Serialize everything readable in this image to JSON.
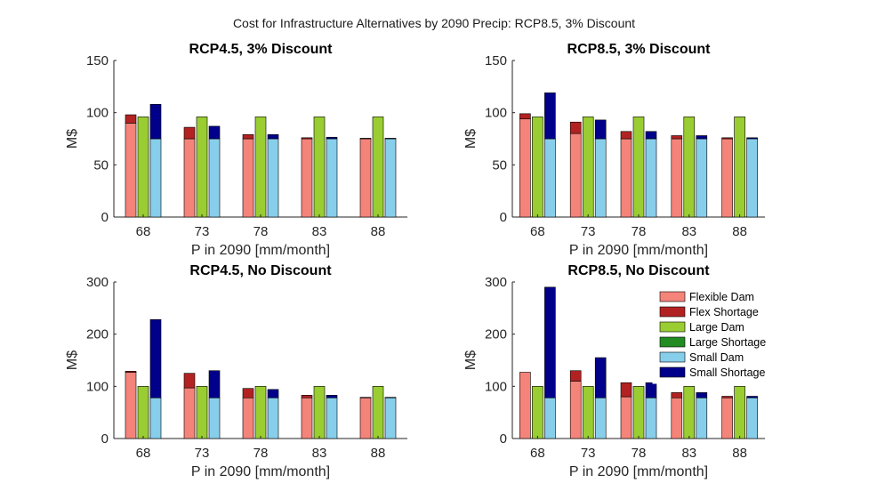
{
  "figure_title": "Cost for Infrastructure Alternatives by 2090 Precip: RCP8.5, 3% Discount",
  "colors": {
    "Flexible Dam": "#f4837a",
    "Flex Shortage": "#b22222",
    "Large Dam": "#9acd32",
    "Large Shortage": "#228b22",
    "Small Dam": "#87ceeb",
    "Small Shortage": "#00008b"
  },
  "legend": {
    "placement": "top-right of bottom-right panel",
    "entries": [
      "Flexible Dam",
      "Flex Shortage",
      "Large Dam",
      "Large Shortage",
      "Small Dam",
      "Small Shortage"
    ]
  },
  "chart_data": [
    {
      "type": "bar",
      "stacked": true,
      "title": "RCP4.5, 3% Discount",
      "xlabel": "P in 2090 [mm/month]",
      "ylabel": "M$",
      "ylim": [
        0,
        150
      ],
      "yticks": [
        0,
        50,
        100,
        150
      ],
      "categories": [
        "68",
        "73",
        "78",
        "83",
        "88"
      ],
      "groups": [
        {
          "name": "Flexible",
          "series": [
            {
              "name": "Flexible Dam",
              "values": [
                90,
                75,
                75,
                75,
                75
              ]
            },
            {
              "name": "Flex Shortage",
              "values": [
                8,
                11,
                4,
                1,
                0.5
              ]
            }
          ]
        },
        {
          "name": "Large",
          "series": [
            {
              "name": "Large Dam",
              "values": [
                96,
                96,
                96,
                96,
                96
              ]
            },
            {
              "name": "Large Shortage",
              "values": [
                0,
                0,
                0,
                0,
                0
              ]
            }
          ]
        },
        {
          "name": "Small",
          "series": [
            {
              "name": "Small Dam",
              "values": [
                75,
                75,
                75,
                75,
                75
              ]
            },
            {
              "name": "Small Shortage",
              "values": [
                33,
                12,
                4,
                1.5,
                0.5
              ]
            }
          ]
        }
      ]
    },
    {
      "type": "bar",
      "stacked": true,
      "title": "RCP8.5, 3% Discount",
      "xlabel": "P in 2090 [mm/month]",
      "ylabel": "M$",
      "ylim": [
        0,
        150
      ],
      "yticks": [
        0,
        50,
        100,
        150
      ],
      "categories": [
        "68",
        "73",
        "78",
        "83",
        "88"
      ],
      "groups": [
        {
          "name": "Flexible",
          "series": [
            {
              "name": "Flexible Dam",
              "values": [
                94,
                80,
                75,
                75,
                75
              ]
            },
            {
              "name": "Flex Shortage",
              "values": [
                5,
                11,
                7,
                3,
                1
              ]
            }
          ]
        },
        {
          "name": "Large",
          "series": [
            {
              "name": "Large Dam",
              "values": [
                96,
                96,
                96,
                96,
                96
              ]
            },
            {
              "name": "Large Shortage",
              "values": [
                0,
                0,
                0,
                0,
                0
              ]
            }
          ]
        },
        {
          "name": "Small",
          "series": [
            {
              "name": "Small Dam",
              "values": [
                75,
                75,
                75,
                75,
                75
              ]
            },
            {
              "name": "Small Shortage",
              "values": [
                44,
                18,
                7,
                3,
                1
              ]
            }
          ]
        }
      ]
    },
    {
      "type": "bar",
      "stacked": true,
      "title": "RCP4.5, No Discount",
      "xlabel": "P in 2090 [mm/month]",
      "ylabel": "M$",
      "ylim": [
        0,
        300
      ],
      "yticks": [
        0,
        100,
        200,
        300
      ],
      "categories": [
        "68",
        "73",
        "78",
        "83",
        "88"
      ],
      "groups": [
        {
          "name": "Flexible",
          "series": [
            {
              "name": "Flexible Dam",
              "values": [
                127,
                97,
                78,
                78,
                78
              ]
            },
            {
              "name": "Flex Shortage",
              "values": [
                2,
                28,
                18,
                5,
                1
              ]
            }
          ]
        },
        {
          "name": "Large",
          "series": [
            {
              "name": "Large Dam",
              "values": [
                100,
                100,
                100,
                100,
                100
              ]
            },
            {
              "name": "Large Shortage",
              "values": [
                0,
                0,
                0,
                0,
                0
              ]
            }
          ]
        },
        {
          "name": "Small",
          "series": [
            {
              "name": "Small Dam",
              "values": [
                78,
                78,
                78,
                78,
                78
              ]
            },
            {
              "name": "Small Shortage",
              "values": [
                150,
                52,
                16,
                5,
                1
              ]
            }
          ]
        }
      ]
    },
    {
      "type": "bar",
      "stacked": true,
      "title": "RCP8.5, No Discount",
      "xlabel": "P in 2090 [mm/month]",
      "ylabel": "M$",
      "ylim": [
        0,
        300
      ],
      "yticks": [
        0,
        100,
        200,
        300
      ],
      "categories": [
        "68",
        "73",
        "78",
        "83",
        "88"
      ],
      "groups": [
        {
          "name": "Flexible",
          "series": [
            {
              "name": "Flexible Dam",
              "values": [
                127,
                110,
                80,
                78,
                78
              ]
            },
            {
              "name": "Flex Shortage",
              "values": [
                0,
                20,
                27,
                10,
                3
              ]
            }
          ]
        },
        {
          "name": "Large",
          "series": [
            {
              "name": "Large Dam",
              "values": [
                100,
                100,
                100,
                100,
                100
              ]
            },
            {
              "name": "Large Shortage",
              "values": [
                0,
                0,
                0,
                0,
                0
              ]
            }
          ]
        },
        {
          "name": "Small",
          "series": [
            {
              "name": "Small Dam",
              "values": [
                78,
                78,
                78,
                78,
                78
              ]
            },
            {
              "name": "Small Shortage",
              "values": [
                212,
                77,
                29,
                10,
                3
              ]
            }
          ]
        }
      ]
    }
  ]
}
